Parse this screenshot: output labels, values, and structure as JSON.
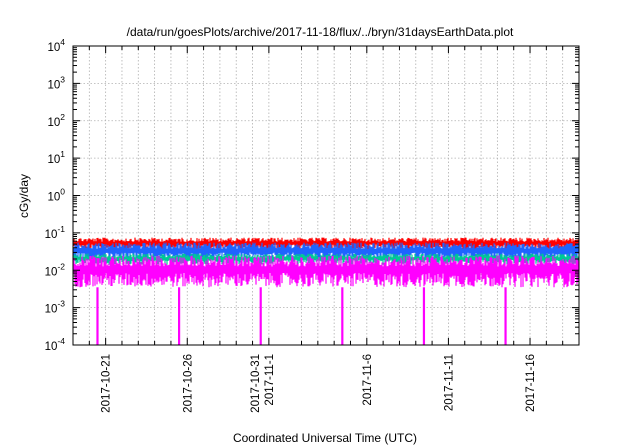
{
  "chart_data": {
    "type": "line",
    "title": "/data/run/goesPlots/archive/2017-11-18/flux/../bryn/31daysEarthData.plot",
    "xlabel": "Coordinated Universal Time (UTC)",
    "ylabel": "cGy/day",
    "yscale": "log",
    "ylim": [
      0.0001,
      10000
    ],
    "xlim": [
      "2017-10-19",
      "2017-11-19"
    ],
    "grid": true,
    "y_ticks": [
      {
        "value": 0.0001,
        "base": "10",
        "exp": "-4"
      },
      {
        "value": 0.001,
        "base": "10",
        "exp": "-3"
      },
      {
        "value": 0.01,
        "base": "10",
        "exp": "-2"
      },
      {
        "value": 0.1,
        "base": "10",
        "exp": "-1"
      },
      {
        "value": 1,
        "base": "10",
        "exp": "0"
      },
      {
        "value": 10,
        "base": "10",
        "exp": "1"
      },
      {
        "value": 100,
        "base": "10",
        "exp": "2"
      },
      {
        "value": 1000,
        "base": "10",
        "exp": "3"
      },
      {
        "value": 10000,
        "base": "10",
        "exp": "4"
      }
    ],
    "x_ticks": [
      {
        "date": "2017-10-21",
        "lines": [
          "2017-10-21"
        ]
      },
      {
        "date": "2017-10-26",
        "lines": [
          "2017-10-26"
        ]
      },
      {
        "date": "2017-10-31",
        "lines": [
          "2017-10-31",
          "2017-11-1"
        ]
      },
      {
        "date": "2017-11-06",
        "lines": [
          "2017-11-6"
        ]
      },
      {
        "date": "2017-11-11",
        "lines": [
          "2017-11-11"
        ]
      },
      {
        "date": "2017-11-16",
        "lines": [
          "2017-11-16"
        ]
      }
    ],
    "x_minor_tick_dates": [
      "2017-10-20",
      "2017-10-22",
      "2017-10-23",
      "2017-10-24",
      "2017-10-25",
      "2017-10-27",
      "2017-10-28",
      "2017-10-29",
      "2017-10-30",
      "2017-11-02",
      "2017-11-03",
      "2017-11-04",
      "2017-11-05",
      "2017-11-07",
      "2017-11-08",
      "2017-11-09",
      "2017-11-10",
      "2017-11-12",
      "2017-11-13",
      "2017-11-14",
      "2017-11-15",
      "2017-11-17",
      "2017-11-18",
      "2017-11-19"
    ],
    "series": [
      {
        "color": "#ff0000",
        "typical_low": 0.035,
        "typical_high": 0.075
      },
      {
        "color": "#1e64ff",
        "typical_low": 0.018,
        "typical_high": 0.055
      },
      {
        "color": "#00c896",
        "typical_low": 0.014,
        "typical_high": 0.028
      },
      {
        "color": "#ff00ff",
        "typical_low": 0.0035,
        "typical_high": 0.025,
        "dropout_dates": [
          "2017-10-20T12:00",
          "2017-10-25T12:00",
          "2017-10-30T12:00",
          "2017-11-04T12:00",
          "2017-11-09T12:00",
          "2017-11-14T12:00"
        ]
      }
    ]
  }
}
